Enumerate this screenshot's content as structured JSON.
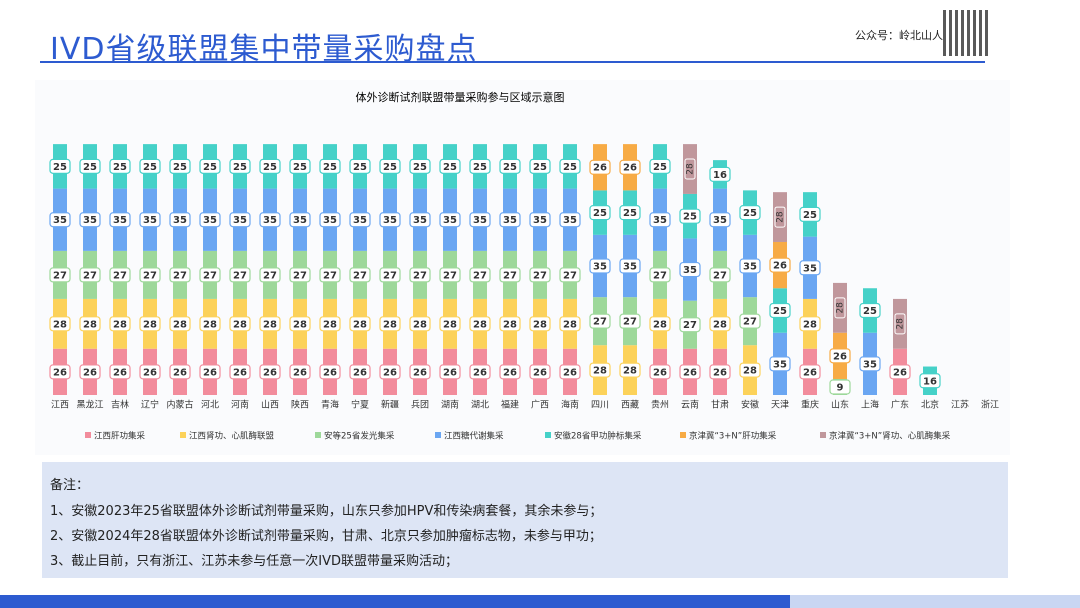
{
  "header": {
    "title": "IVD省级联盟集中带量采购盘点",
    "account": "公众号：岭北山人"
  },
  "chart_data": {
    "type": "stacked_bar",
    "title": "体外诊断试剂联盟带量采购参与区域示意图",
    "categories": [
      "江西",
      "黑龙江",
      "吉林",
      "辽宁",
      "内蒙古",
      "河北",
      "河南",
      "山西",
      "陕西",
      "青海",
      "宁夏",
      "新疆",
      "兵团",
      "湖南",
      "湖北",
      "福建",
      "广西",
      "海南",
      "四川",
      "西藏",
      "贵州",
      "云南",
      "甘肃",
      "安徽",
      "天津",
      "重庆",
      "山东",
      "上海",
      "广东",
      "北京",
      "江苏",
      "浙江"
    ],
    "ylim": [
      0,
      145
    ],
    "series": [
      {
        "name": "江西肝功集采",
        "color": "#f28c9c",
        "values": [
          26,
          26,
          26,
          26,
          26,
          26,
          26,
          26,
          26,
          26,
          26,
          26,
          26,
          26,
          26,
          26,
          26,
          26,
          null,
          null,
          26,
          26,
          26,
          null,
          null,
          26,
          null,
          null,
          26,
          null,
          null,
          null
        ]
      },
      {
        "name": "江西肾功、心肌酶联盟",
        "color": "#fcd25a",
        "values": [
          28,
          28,
          28,
          28,
          28,
          28,
          28,
          28,
          28,
          28,
          28,
          28,
          28,
          28,
          28,
          28,
          28,
          28,
          28,
          28,
          28,
          null,
          28,
          28,
          null,
          28,
          null,
          null,
          null,
          null,
          null,
          null
        ]
      },
      {
        "name": "安等25省发光集采",
        "color": "#9dd89a",
        "values": [
          27,
          27,
          27,
          27,
          27,
          27,
          27,
          27,
          27,
          27,
          27,
          27,
          27,
          27,
          27,
          27,
          27,
          27,
          27,
          27,
          27,
          27,
          27,
          27,
          null,
          null,
          9,
          null,
          null,
          null,
          null,
          null
        ]
      },
      {
        "name": "江西糖代谢集采",
        "color": "#6aa6f2",
        "values": [
          35,
          35,
          35,
          35,
          35,
          35,
          35,
          35,
          35,
          35,
          35,
          35,
          35,
          35,
          35,
          35,
          35,
          35,
          35,
          35,
          35,
          35,
          35,
          35,
          35,
          35,
          null,
          35,
          null,
          null,
          null,
          null
        ]
      },
      {
        "name": "安徽28省甲功肿标集采",
        "color": "#45d1c8",
        "values": [
          25,
          25,
          25,
          25,
          25,
          25,
          25,
          25,
          25,
          25,
          25,
          25,
          25,
          25,
          25,
          25,
          25,
          25,
          25,
          25,
          25,
          25,
          16,
          25,
          25,
          25,
          null,
          25,
          null,
          16,
          null,
          null
        ]
      },
      {
        "name": "京津冀“3+N”肝功集采",
        "color": "#f7ab45",
        "values": [
          null,
          null,
          null,
          null,
          null,
          null,
          null,
          null,
          null,
          null,
          null,
          null,
          null,
          null,
          null,
          null,
          null,
          null,
          26,
          26,
          null,
          null,
          null,
          null,
          26,
          null,
          26,
          null,
          null,
          null,
          null,
          null
        ]
      },
      {
        "name": "京津冀“3+N”肾功、心肌酶集采",
        "color": "#c0979c",
        "values": [
          null,
          null,
          null,
          null,
          null,
          null,
          null,
          null,
          null,
          null,
          null,
          null,
          null,
          null,
          null,
          null,
          null,
          null,
          null,
          null,
          null,
          28,
          null,
          null,
          28,
          null,
          28,
          null,
          28,
          null,
          null,
          null
        ]
      }
    ]
  },
  "notes": {
    "heading": "备注：",
    "lines": [
      "1、安徽2023年25省联盟体外诊断试剂带量采购，山东只参加HPV和传染病套餐，其余未参与；",
      "2、安徽2024年28省联盟体外诊断试剂带量采购，甘肃、北京只参加肿瘤标志物，未参与甲功；",
      "3、截止目前，只有浙江、江苏未参与任意一次IVD联盟带量采购活动；"
    ]
  }
}
